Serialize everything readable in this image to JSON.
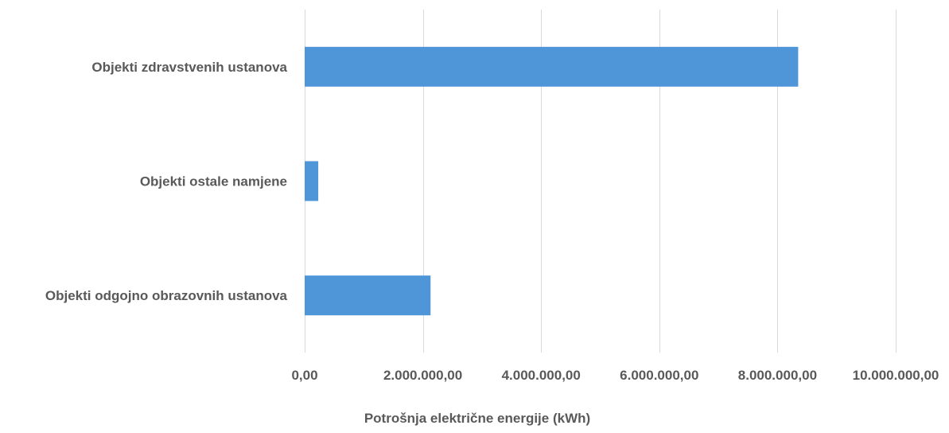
{
  "chart_data": {
    "type": "bar",
    "orientation": "horizontal",
    "title": "",
    "xlabel": "Potrošnja električne energije (kWh)",
    "ylabel": "",
    "categories": [
      "Objekti zdravstvenih ustanova",
      "Objekti ostale namjene",
      "Objekti odgojno obrazovnih ustanova"
    ],
    "values": [
      8350000,
      230000,
      2130000
    ],
    "xlim": [
      0,
      10000000
    ],
    "x_ticks": [
      0,
      2000000,
      4000000,
      6000000,
      8000000,
      10000000
    ],
    "x_tick_labels": [
      "0,00",
      "2.000.000,00",
      "4.000.000,00",
      "6.000.000,00",
      "8.000.000,00",
      "10.000.000,00"
    ],
    "grid": "vertical",
    "legend": "none",
    "bar_color": "#4f96d9"
  }
}
